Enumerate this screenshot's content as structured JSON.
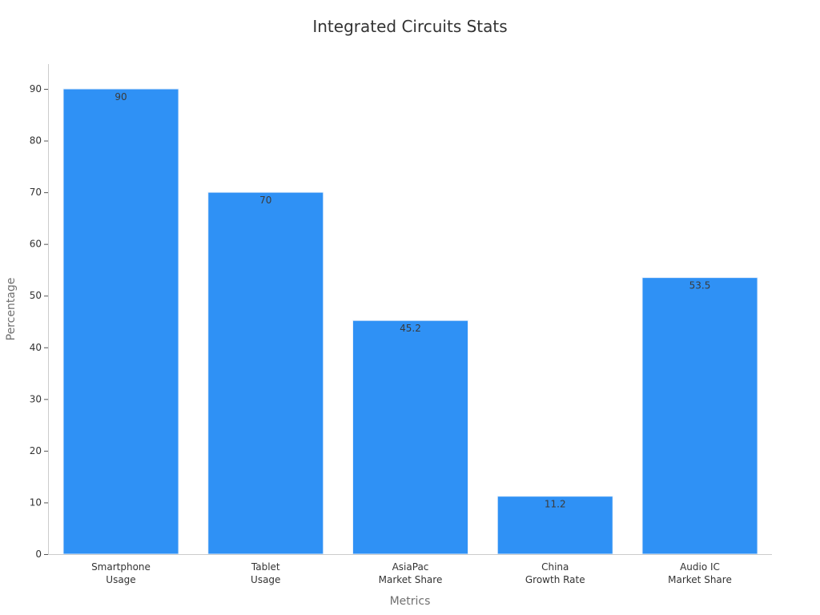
{
  "chart_data": {
    "type": "bar",
    "title": "Integrated Circuits Stats",
    "xlabel": "Metrics",
    "ylabel": "Percentage",
    "categories": [
      [
        "Smartphone",
        "Usage"
      ],
      [
        "Tablet",
        "Usage"
      ],
      [
        "AsiaPac",
        "Market Share"
      ],
      [
        "China",
        "Growth Rate"
      ],
      [
        "Audio IC",
        "Market Share"
      ]
    ],
    "values": [
      90,
      70,
      45.2,
      11.2,
      53.5
    ],
    "ylim": [
      0,
      95
    ],
    "yticks": [
      0,
      10,
      20,
      30,
      40,
      50,
      60,
      70,
      80,
      90
    ],
    "grid": false,
    "bar_color": "#2f91f5",
    "bar_edge_color": "#e8f1fb"
  }
}
